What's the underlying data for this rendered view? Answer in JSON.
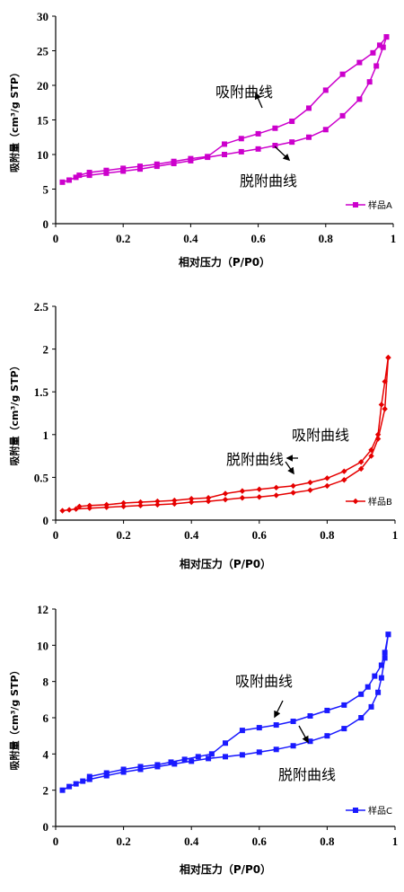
{
  "chart_data": [
    {
      "type": "line",
      "xlabel": "相对压力（P/P0）",
      "ylabel": "吸附量（cm³/g STP）",
      "xlim": [
        0,
        1
      ],
      "ylim": [
        0,
        30
      ],
      "x_ticks": [
        "0",
        "0.2",
        "0.4",
        "0.6",
        "0.8",
        "1"
      ],
      "y_ticks": [
        "0",
        "5",
        "10",
        "15",
        "20",
        "25",
        "30"
      ],
      "grid": false,
      "legend": "bottom-right",
      "marker": "square",
      "color": "#cc00cc",
      "series": [
        {
          "name": "样品A",
          "x": [
            0.02,
            0.04,
            0.06,
            0.1,
            0.15,
            0.2,
            0.25,
            0.3,
            0.35,
            0.4,
            0.45,
            0.5,
            0.55,
            0.6,
            0.65,
            0.7,
            0.75,
            0.8,
            0.85,
            0.9,
            0.93,
            0.95,
            0.97,
            0.98
          ],
          "y": [
            6.0,
            6.3,
            6.7,
            7.0,
            7.3,
            7.6,
            7.9,
            8.3,
            8.7,
            9.1,
            9.6,
            10.0,
            10.4,
            10.8,
            11.3,
            11.8,
            12.5,
            13.6,
            15.6,
            18.0,
            20.5,
            22.8,
            25.5,
            27.0
          ]
        },
        {
          "x": [
            0.98,
            0.96,
            0.94,
            0.9,
            0.85,
            0.8,
            0.75,
            0.7,
            0.65,
            0.6,
            0.55,
            0.5,
            0.45,
            0.4,
            0.35,
            0.3,
            0.25,
            0.2,
            0.15,
            0.1,
            0.07
          ],
          "y": [
            27.0,
            25.8,
            24.7,
            23.3,
            21.6,
            19.3,
            16.7,
            14.8,
            13.8,
            13.0,
            12.3,
            11.5,
            9.7,
            9.4,
            9.0,
            8.6,
            8.3,
            8.0,
            7.7,
            7.4,
            7.0
          ]
        }
      ],
      "annotations": [
        {
          "text": "吸附曲线",
          "x": 0.6,
          "y": 19.0
        },
        {
          "text": "脱附曲线",
          "x": 0.68,
          "y": 5.5
        }
      ]
    },
    {
      "type": "line",
      "xlabel": "相对压力（P/P0）",
      "ylabel": "吸附量（cm³/g STP）",
      "xlim": [
        0,
        1
      ],
      "ylim": [
        0,
        2.5
      ],
      "x_ticks": [
        "0",
        "0.2",
        "0.4",
        "0.6",
        "0.8",
        "1"
      ],
      "y_ticks": [
        "0",
        "0.5",
        "1",
        "1.5",
        "2",
        "2.5"
      ],
      "grid": false,
      "legend": "bottom-right",
      "marker": "diamond",
      "color": "#e60000",
      "series": [
        {
          "name": "样品B",
          "x": [
            0.02,
            0.04,
            0.06,
            0.1,
            0.15,
            0.2,
            0.25,
            0.3,
            0.35,
            0.4,
            0.45,
            0.5,
            0.55,
            0.6,
            0.65,
            0.7,
            0.75,
            0.8,
            0.85,
            0.9,
            0.93,
            0.95,
            0.97,
            0.98
          ],
          "y": [
            0.11,
            0.12,
            0.13,
            0.14,
            0.15,
            0.16,
            0.17,
            0.18,
            0.19,
            0.21,
            0.22,
            0.24,
            0.26,
            0.27,
            0.29,
            0.32,
            0.35,
            0.4,
            0.47,
            0.6,
            0.75,
            0.95,
            1.3,
            1.9
          ]
        },
        {
          "x": [
            0.98,
            0.97,
            0.96,
            0.95,
            0.93,
            0.9,
            0.85,
            0.8,
            0.75,
            0.7,
            0.65,
            0.6,
            0.55,
            0.5,
            0.45,
            0.4,
            0.35,
            0.3,
            0.25,
            0.2,
            0.15,
            0.1,
            0.07
          ],
          "y": [
            1.9,
            1.62,
            1.35,
            1.0,
            0.82,
            0.68,
            0.57,
            0.49,
            0.44,
            0.4,
            0.38,
            0.36,
            0.34,
            0.31,
            0.26,
            0.25,
            0.23,
            0.22,
            0.21,
            0.2,
            0.18,
            0.17,
            0.16
          ]
        }
      ],
      "annotations": [
        {
          "text": "吸附曲线",
          "x": 0.7,
          "y": 0.98
        },
        {
          "text": "脱附曲线",
          "x": 0.5,
          "y": 0.62
        }
      ]
    },
    {
      "type": "line",
      "xlabel": "相对压力（P/P0）",
      "ylabel": "吸附量（cm³/g STP）",
      "xlim": [
        0,
        1
      ],
      "ylim": [
        0,
        12
      ],
      "x_ticks": [
        "0",
        "0.2",
        "0.4",
        "0.6",
        "0.8",
        "1"
      ],
      "y_ticks": [
        "0",
        "2",
        "4",
        "6",
        "8",
        "10",
        "12"
      ],
      "grid": false,
      "legend": "bottom-right",
      "marker": "square",
      "color": "#1a1aff",
      "series": [
        {
          "name": "样品C",
          "x": [
            0.02,
            0.04,
            0.06,
            0.08,
            0.1,
            0.15,
            0.2,
            0.25,
            0.3,
            0.35,
            0.4,
            0.45,
            0.5,
            0.55,
            0.6,
            0.65,
            0.7,
            0.75,
            0.8,
            0.85,
            0.9,
            0.93,
            0.95,
            0.96,
            0.97,
            0.98
          ],
          "y": [
            2.0,
            2.2,
            2.35,
            2.5,
            2.6,
            2.8,
            3.0,
            3.15,
            3.3,
            3.45,
            3.6,
            3.75,
            3.85,
            3.95,
            4.1,
            4.25,
            4.45,
            4.7,
            5.0,
            5.4,
            6.0,
            6.6,
            7.4,
            8.2,
            9.3,
            10.6
          ]
        },
        {
          "x": [
            0.98,
            0.97,
            0.96,
            0.94,
            0.92,
            0.9,
            0.85,
            0.8,
            0.75,
            0.7,
            0.65,
            0.6,
            0.55,
            0.5,
            0.46,
            0.42,
            0.38,
            0.34,
            0.3,
            0.25,
            0.2,
            0.15,
            0.1
          ],
          "y": [
            10.6,
            9.6,
            8.9,
            8.3,
            7.7,
            7.3,
            6.7,
            6.4,
            6.1,
            5.8,
            5.6,
            5.45,
            5.3,
            4.6,
            4.0,
            3.85,
            3.7,
            3.55,
            3.4,
            3.3,
            3.15,
            2.95,
            2.75
          ]
        }
      ],
      "annotations": [
        {
          "text": "吸附曲线",
          "x": 0.54,
          "y": 8.8
        },
        {
          "text": "脱附曲线",
          "x": 0.66,
          "y": 3.0
        }
      ]
    }
  ]
}
